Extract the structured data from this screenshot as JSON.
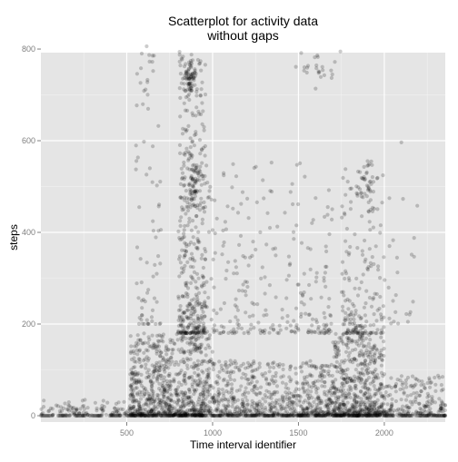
{
  "chart_data": {
    "type": "scatter",
    "title": "Scatterplot for activity data\nwithout gaps",
    "xlabel": "Time interval identifier",
    "ylabel": "steps",
    "xlim": [
      0,
      2355
    ],
    "ylim": [
      0,
      806
    ],
    "x_ticks": [
      500,
      1000,
      1500,
      2000
    ],
    "y_ticks": [
      0,
      200,
      400,
      600,
      800
    ],
    "grid": true,
    "point_color": "#000000",
    "point_alpha": 0.2,
    "panel_background": "#e5e5e5",
    "gridline_color": "#ffffff",
    "tick_label_color": "#7f7f7f",
    "x_step": [
      5,
      60,
      100,
      2355
    ],
    "bands": [
      {
        "x": [
          0,
          520
        ],
        "y": [
          0,
          35
        ],
        "n": 120
      },
      {
        "x": [
          520,
          1000
        ],
        "y": [
          0,
          180
        ],
        "n": 900
      },
      {
        "x": [
          1000,
          1700
        ],
        "y": [
          0,
          120
        ],
        "n": 700
      },
      {
        "x": [
          1700,
          2000
        ],
        "y": [
          0,
          180
        ],
        "n": 600
      },
      {
        "x": [
          2000,
          2355
        ],
        "y": [
          0,
          90
        ],
        "n": 220
      },
      {
        "x": [
          550,
          700
        ],
        "y": [
          200,
          800
        ],
        "n": 60
      },
      {
        "x": [
          800,
          960
        ],
        "y": [
          180,
          800
        ],
        "n": 380
      },
      {
        "x": [
          960,
          1700
        ],
        "y": [
          180,
          560
        ],
        "n": 260
      },
      {
        "x": [
          1750,
          2000
        ],
        "y": [
          180,
          560
        ],
        "n": 180
      },
      {
        "x": [
          2000,
          2200
        ],
        "y": [
          200,
          600
        ],
        "n": 25
      }
    ],
    "clusters": [
      {
        "x": 870,
        "y": 745,
        "sx": 20,
        "sy": 18,
        "n": 60
      },
      {
        "x": 890,
        "y": 510,
        "sx": 35,
        "sy": 40,
        "n": 90
      },
      {
        "x": 1620,
        "y": 760,
        "sx": 50,
        "sy": 20,
        "n": 25
      },
      {
        "x": 1900,
        "y": 500,
        "sx": 40,
        "sy": 35,
        "n": 40
      },
      {
        "x": 620,
        "y": 740,
        "sx": 25,
        "sy": 40,
        "n": 15
      }
    ]
  }
}
